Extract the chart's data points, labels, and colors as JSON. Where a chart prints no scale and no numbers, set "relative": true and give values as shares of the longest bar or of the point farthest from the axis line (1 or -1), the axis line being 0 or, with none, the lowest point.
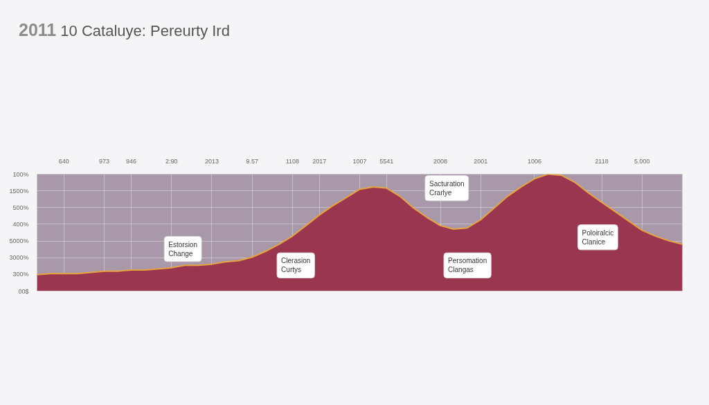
{
  "chart_data": {
    "type": "area",
    "title": "2011 10 Cataluye: Pereurty Ird",
    "relative": true,
    "categories": [
      null,
      null,
      "640",
      null,
      null,
      "973",
      null,
      "946",
      null,
      null,
      "2:90",
      null,
      null,
      "2013",
      null,
      null,
      "9.57",
      null,
      null,
      "1108",
      null,
      "2017",
      null,
      null,
      "1007",
      null,
      "5541",
      null,
      null,
      null,
      "2008",
      null,
      null,
      "2001",
      null,
      null,
      null,
      "1006",
      null,
      null,
      null,
      null,
      "2118",
      null,
      null,
      "5.000",
      null,
      null,
      null
    ],
    "series": [
      {
        "color": "#9b3650",
        "values": [
          0.14,
          0.15,
          0.15,
          0.15,
          0.16,
          0.17,
          0.17,
          0.18,
          0.18,
          0.19,
          0.2,
          0.22,
          0.22,
          0.23,
          0.25,
          0.26,
          0.29,
          0.34,
          0.4,
          0.47,
          0.56,
          0.65,
          0.73,
          0.8,
          0.87,
          0.89,
          0.88,
          0.81,
          0.71,
          0.63,
          0.56,
          0.53,
          0.54,
          0.61,
          0.71,
          0.81,
          0.89,
          0.96,
          1.0,
          0.99,
          0.93,
          0.84,
          0.76,
          0.68,
          0.6,
          0.52,
          0.47,
          0.43,
          0.4
        ]
      }
    ],
    "grid": true,
    "annotations": [
      "Estorsion Change",
      "Clerasion Curtys",
      "Sacturation Crarlye",
      "Persomation Clangas",
      "Poloiralcic Clanice",
      "100%",
      "1500%",
      "500%",
      "400%",
      "5000%",
      "3000%",
      "300%",
      "00$"
    ]
  }
}
